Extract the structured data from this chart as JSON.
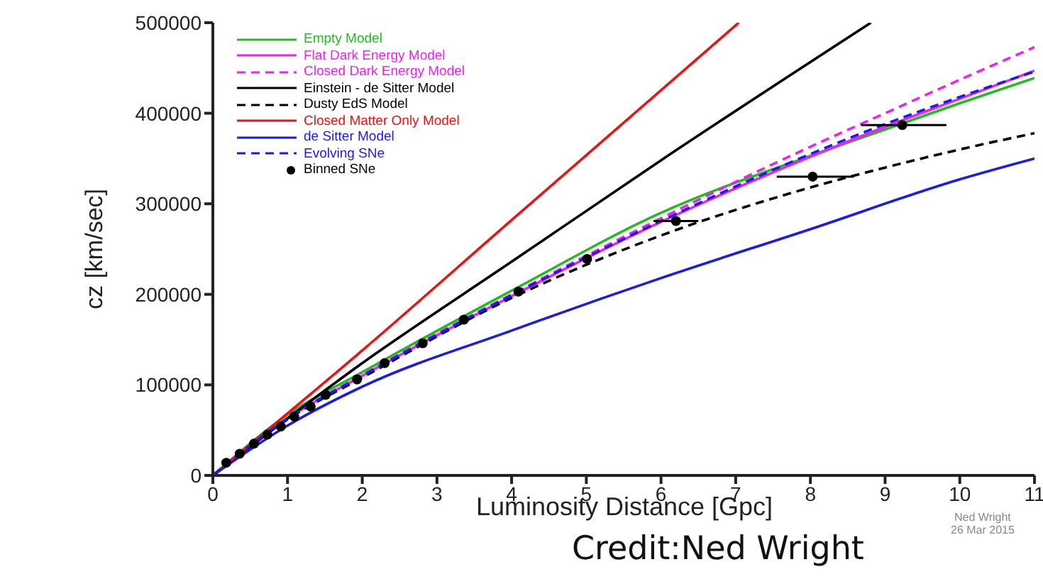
{
  "chart_data": {
    "type": "line",
    "xlabel": "Luminosity Distance [Gpc]",
    "ylabel": "cz [km/sec]",
    "xlim": [
      0,
      11
    ],
    "ylim": [
      0,
      500000
    ],
    "xticks": [
      0,
      1,
      2,
      3,
      4,
      5,
      6,
      7,
      8,
      9,
      10,
      11
    ],
    "yticks": [
      0,
      100000,
      200000,
      300000,
      400000,
      500000
    ],
    "grid": false,
    "legend": "top left",
    "marker": "none",
    "series": [
      {
        "name": "Empty Model",
        "color": "#22bb22",
        "x": [
          0,
          1,
          2,
          4,
          6,
          8,
          9,
          10,
          11
        ],
        "values": [
          0,
          67000,
          114000,
          204000,
          290000,
          353000,
          382000,
          411000,
          439000
        ]
      },
      {
        "name": "Flat Dark Energy Model",
        "color": "#ee22ee",
        "x": [
          0,
          1,
          2,
          4,
          6,
          8,
          9,
          10,
          11
        ],
        "values": [
          0,
          63000,
          110000,
          198000,
          280000,
          352000,
          385000,
          416000,
          447000
        ]
      },
      {
        "name": "Closed Dark Energy Model",
        "color": "#ee22ee",
        "line_style": "dashed",
        "x": [
          0,
          1,
          2,
          4,
          6,
          8,
          9,
          10,
          11
        ],
        "values": [
          0,
          63000,
          111000,
          200000,
          284000,
          363000,
          400000,
          437000,
          473000
        ]
      },
      {
        "name": "Einstein - de Sitter Model",
        "color": "#000000",
        "x": [
          0,
          2,
          4,
          6,
          8.81
        ],
        "values": [
          0,
          124000,
          236000,
          348000,
          500000
        ]
      },
      {
        "name": "Dusty EdS Model",
        "color": "#000000",
        "line_style": "dashed",
        "x": [
          0,
          1,
          2,
          4,
          6,
          8,
          9,
          10,
          11
        ],
        "values": [
          0,
          62000,
          108000,
          196000,
          265000,
          318000,
          340000,
          360000,
          378000
        ]
      },
      {
        "name": "Closed Matter Only Model",
        "color": "#ee1111",
        "x": [
          0,
          2,
          4,
          7.04
        ],
        "values": [
          0,
          138000,
          282000,
          500000
        ]
      },
      {
        "name": "de Sitter Model",
        "color": "#1a1aee",
        "x": [
          0,
          1,
          2,
          4,
          6,
          8,
          10,
          11
        ],
        "values": [
          0,
          55000,
          98000,
          160000,
          218000,
          272000,
          327000,
          350000
        ]
      },
      {
        "name": "Evolving SNe",
        "color": "#1a1aee",
        "line_style": "dashed",
        "x": [
          0,
          1,
          2,
          4,
          6,
          8,
          9,
          10,
          11
        ],
        "values": [
          0,
          63000,
          110000,
          199000,
          281000,
          355000,
          388000,
          418000,
          446000
        ]
      },
      {
        "name": "Binned SNe",
        "type": "scatter",
        "color": "#000000",
        "marker": "circle",
        "x": [
          0.18,
          0.36,
          0.55,
          0.73,
          0.91,
          1.09,
          1.31,
          1.51,
          1.93,
          2.3,
          2.81,
          3.36,
          4.09,
          5.01,
          6.2,
          8.03,
          9.23
        ],
        "values": [
          14000,
          24000,
          35000,
          45000,
          54000,
          65000,
          76000,
          89000,
          106000,
          124000,
          146000,
          172000,
          203000,
          239000,
          281000,
          330000,
          387000
        ],
        "xerrors": [
          null,
          null,
          null,
          null,
          null,
          null,
          null,
          null,
          null,
          null,
          null,
          null,
          null,
          null,
          [
            5.9,
            6.5
          ],
          [
            7.55,
            8.58
          ],
          [
            8.68,
            9.82
          ]
        ]
      }
    ],
    "annotations": [
      "Ned Wright\n26 Mar 2015",
      "Credit:Ned Wright"
    ]
  }
}
